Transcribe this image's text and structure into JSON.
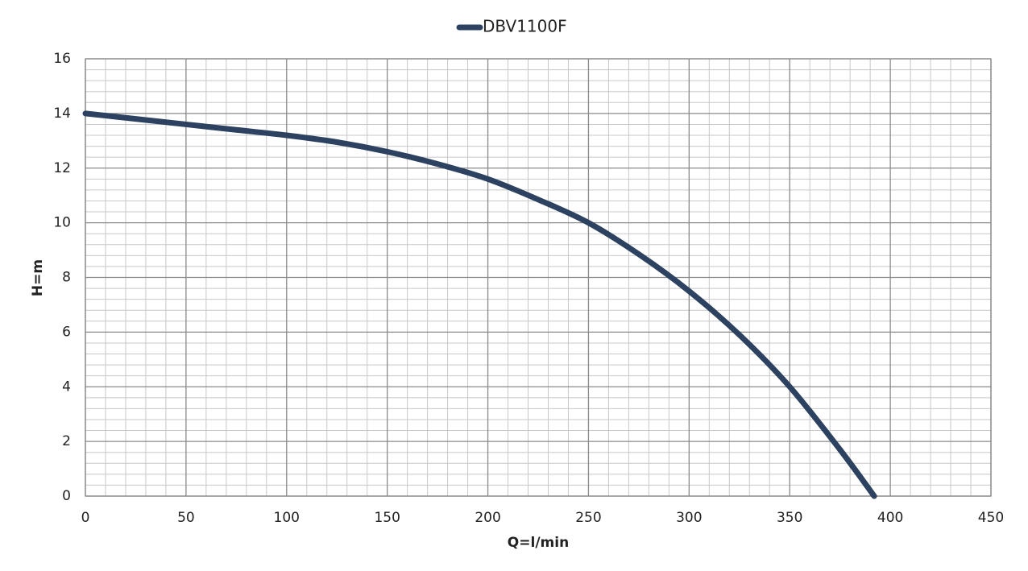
{
  "chart_data": {
    "type": "line",
    "x_label": "Q=l/min",
    "y_label": "H=m",
    "x": [
      0,
      25,
      50,
      75,
      100,
      125,
      150,
      175,
      200,
      225,
      250,
      275,
      300,
      325,
      350,
      375,
      392
    ],
    "series": [
      {
        "name": "DBV1100F",
        "color": "#2c4260",
        "values": [
          14,
          13.8,
          13.6,
          13.4,
          13.2,
          12.95,
          12.6,
          12.15,
          11.6,
          10.85,
          10,
          8.85,
          7.5,
          5.9,
          4,
          1.7,
          0
        ]
      }
    ],
    "xlim": [
      0,
      450
    ],
    "xticks": [
      0,
      50,
      100,
      150,
      200,
      250,
      300,
      350,
      400,
      450
    ],
    "ylim": [
      0,
      16
    ],
    "yticks": [
      0,
      2,
      4,
      6,
      8,
      10,
      12,
      14,
      16
    ],
    "grid": true,
    "legend": "top"
  }
}
